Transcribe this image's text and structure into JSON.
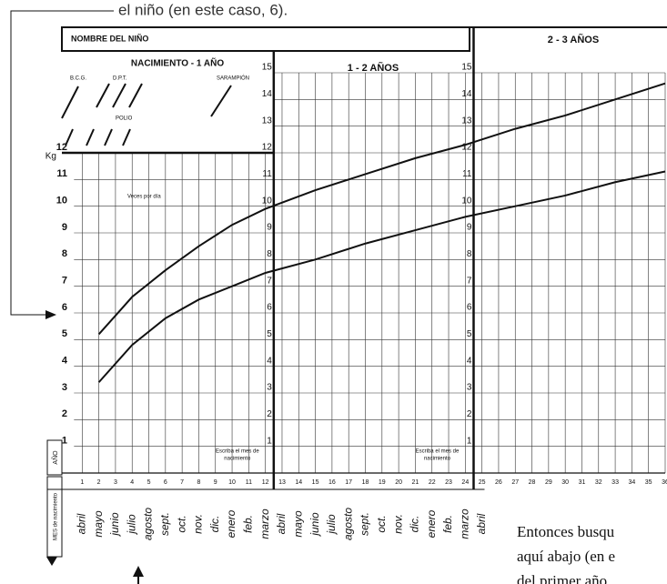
{
  "chart_data": {
    "type": "line",
    "x": [
      2,
      4,
      6,
      8,
      10,
      12,
      15,
      18,
      21,
      24,
      27,
      30,
      33,
      36
    ],
    "series": [
      {
        "color": "#111111",
        "values": [
          5.2,
          6.6,
          7.6,
          8.5,
          9.3,
          9.9,
          10.6,
          11.2,
          11.8,
          12.3,
          12.9,
          13.4,
          14.0,
          14.6
        ]
      },
      {
        "color": "#111111",
        "values": [
          3.4,
          4.8,
          5.8,
          6.5,
          7.0,
          7.5,
          8.0,
          8.6,
          9.1,
          9.6,
          10.0,
          10.4,
          10.9,
          11.3
        ]
      }
    ],
    "xlim": [
      0,
      36
    ],
    "xticks": [
      1,
      2,
      3,
      4,
      5,
      6,
      7,
      8,
      9,
      10,
      11,
      12,
      13,
      14,
      15,
      16,
      17,
      18,
      19,
      20,
      21,
      22,
      23,
      24,
      25,
      26,
      27,
      28,
      29,
      30,
      31,
      32,
      33,
      34,
      35,
      36
    ],
    "ylim": [
      0,
      15
    ],
    "yticks": [
      1,
      2,
      3,
      4,
      5,
      6,
      7,
      8,
      9,
      10,
      11,
      12,
      13,
      14,
      15
    ],
    "grid": true,
    "y_unit": "Kg",
    "months": [
      "abril",
      "mayo",
      "junio",
      "julio",
      "agosto",
      "sept.",
      "oct.",
      "nov.",
      "dic.",
      "enero",
      "feb.",
      "marzo",
      "abril",
      "mayo",
      "junio",
      "julio",
      "agosto",
      "sept.",
      "oct.",
      "nov.",
      "dic.",
      "enero",
      "feb.",
      "marzo",
      "abril"
    ],
    "annotations": {
      "note_top": "el niño (en este caso, 6).",
      "name_label": "NOMBRE DEL NIÑO",
      "period_1": "NACIMIENTO - 1 AÑO",
      "period_2": "1 - 2 AÑOS",
      "period_3": "2 - 3 AÑOS",
      "bcg": "B.C.G.",
      "dpt": "D.P.T.",
      "measles": "SARAMPIÓN",
      "polio": "POLIO",
      "feeding": "Veces por día",
      "write_month": [
        "Escriba el mes de",
        "nacimiento"
      ],
      "year_label": "AÑO",
      "month_label": "MES de nacimiento",
      "body_text": [
        "Entonces busqu",
        "aquí abajo (en e",
        "del primer año"
      ]
    }
  }
}
